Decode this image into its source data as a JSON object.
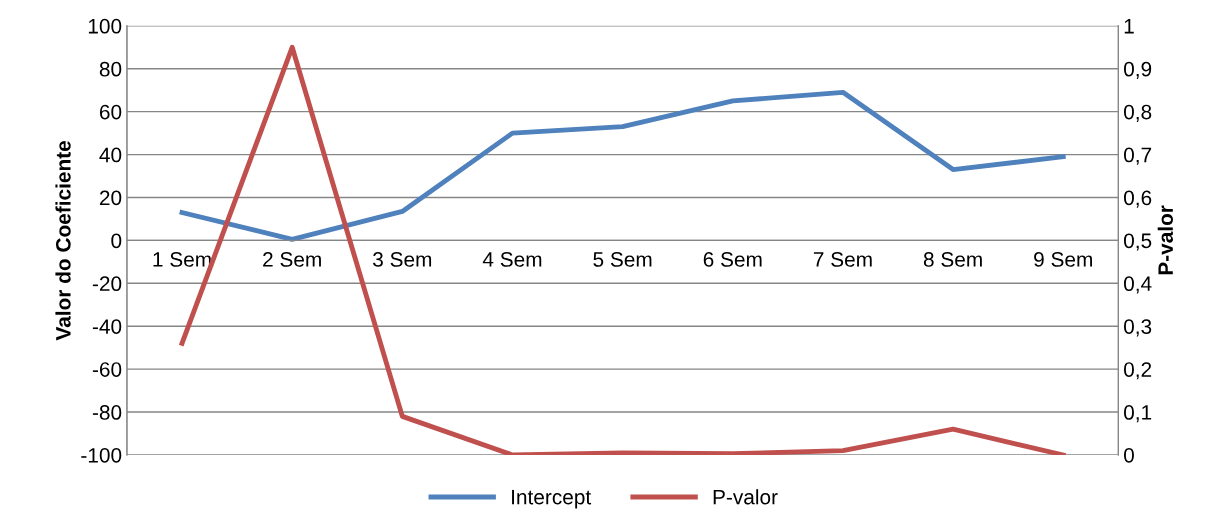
{
  "chart_data": {
    "type": "line",
    "ylabel": "Valor do Coeficiente",
    "y2label": "P-valor",
    "categories": [
      "1 Sem",
      "2 Sem",
      "3 Sem",
      "4 Sem",
      "5 Sem",
      "6 Sem",
      "7 Sem",
      "8 Sem",
      "9 Sem"
    ],
    "series": [
      {
        "name": "Intercept",
        "color": "#4f81bd",
        "values": [
          13,
          0.5,
          13.5,
          50,
          53,
          65,
          69,
          33,
          39
        ]
      },
      {
        "name": "P-valor",
        "color": "#c0504d",
        "axis": "y2",
        "values": [
          0.26,
          0.95,
          0.09,
          0.0,
          0.005,
          0.003,
          0.01,
          0.06,
          0.0
        ]
      }
    ],
    "ylim": [
      -100,
      100
    ],
    "yticks": [
      -100,
      -80,
      -60,
      -40,
      -20,
      0,
      20,
      40,
      60,
      80,
      100
    ],
    "y2lim": [
      0,
      1
    ],
    "y2ticks": [
      0,
      {
        "value": 0.1,
        "label": "0,1"
      },
      {
        "value": 0.2,
        "label": "0,2"
      },
      {
        "value": 0.3,
        "label": "0,3"
      },
      {
        "value": 0.4,
        "label": "0,4"
      },
      {
        "value": 0.5,
        "label": "0,5"
      },
      {
        "value": 0.6,
        "label": "0,6"
      },
      {
        "value": 0.7,
        "label": "0,7"
      },
      {
        "value": 0.8,
        "label": "0,8"
      },
      {
        "value": 0.9,
        "label": "0,9"
      },
      1
    ],
    "grid": "y",
    "legend": "bottom",
    "marker": "none",
    "line_style": "solid"
  }
}
